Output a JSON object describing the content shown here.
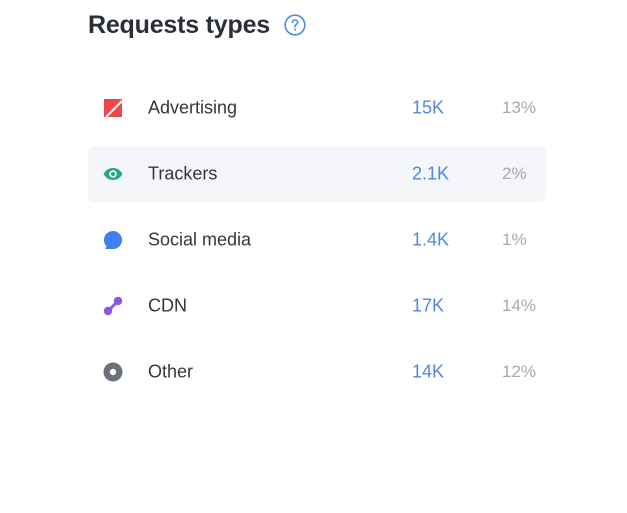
{
  "header": {
    "title": "Requests types",
    "help_icon": "question-circle-icon"
  },
  "colors": {
    "accent": "#4f86e8",
    "advertising": "#ef4747",
    "trackers": "#26a97c",
    "social": "#3f7ff0",
    "cdn": "#8a56e6",
    "other": "#6b7079"
  },
  "rows": [
    {
      "label": "Advertising",
      "count": "15K",
      "percent": "13%",
      "icon": "advertising-icon"
    },
    {
      "label": "Trackers",
      "count": "2.1K",
      "percent": "2%",
      "icon": "eye-icon"
    },
    {
      "label": "Social media",
      "count": "1.4K",
      "percent": "1%",
      "icon": "chat-bubble-icon"
    },
    {
      "label": "CDN",
      "count": "17K",
      "percent": "14%",
      "icon": "cdn-icon"
    },
    {
      "label": "Other",
      "count": "14K",
      "percent": "12%",
      "icon": "other-dot-icon"
    }
  ]
}
